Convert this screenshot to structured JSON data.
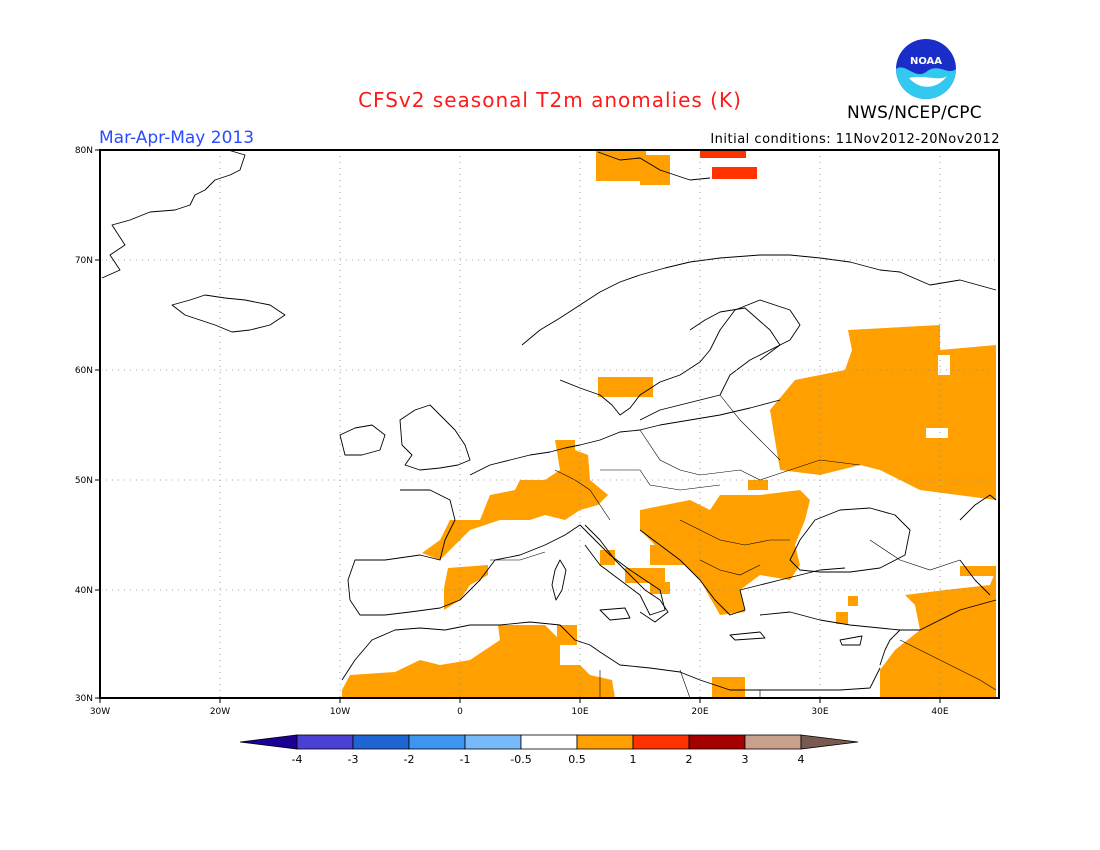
{
  "header": {
    "title": "CFSv2 seasonal T2m anomalies (K)",
    "season": "Mar-Apr-May 2013",
    "initial_conditions": "Initial conditions: 11Nov2012-20Nov2012",
    "agency": "NWS/NCEP/CPC",
    "logo_text": "NOAA"
  },
  "axes": {
    "lon_labels": [
      "30W",
      "20W",
      "10W",
      "0",
      "10E",
      "20E",
      "30E",
      "40E"
    ],
    "lat_labels": [
      "30N",
      "40N",
      "50N",
      "60N",
      "70N",
      "80N"
    ]
  },
  "colorbar": {
    "labels": [
      "-4",
      "-3",
      "-2",
      "-1",
      "-0.5",
      "0.5",
      "1",
      "2",
      "3",
      "4"
    ],
    "colors": [
      "#1c0096",
      "#4a40d2",
      "#1e64d2",
      "#3c96f0",
      "#78b9fa",
      "#ffffff",
      "#ffa000",
      "#ff3200",
      "#a50000",
      "#c8a08c",
      "#785a50"
    ]
  },
  "colors": {
    "anomaly_warm": "#ffa000",
    "anomaly_hot": "#ff3200",
    "coastline": "#000000",
    "title": "#ff1a1a",
    "season": "#2b4bff"
  }
}
